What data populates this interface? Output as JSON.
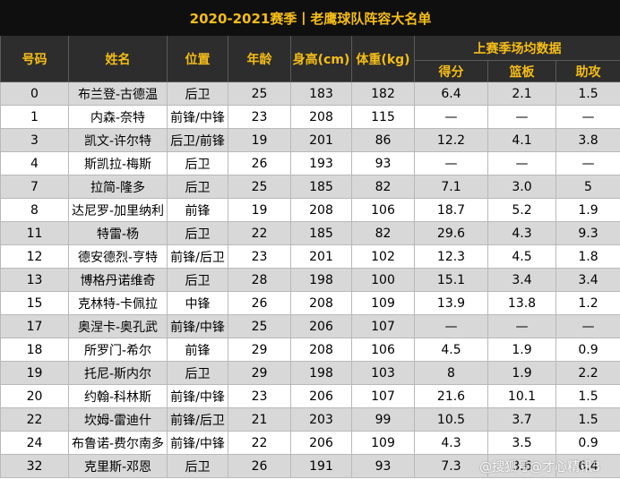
{
  "title": "2020-2021赛季丨老鹰球队阵容大名单",
  "headers": {
    "number": "号码",
    "name": "姓名",
    "position": "位置",
    "age": "年龄",
    "height": "身高(cm)",
    "weight": "体重(kg)",
    "last_season": "上赛季场均数据",
    "points": "得分",
    "rebounds": "篮板",
    "assists": "助攻"
  },
  "rows": [
    [
      "0",
      "布兰登-古德温",
      "后卫",
      "25",
      "183",
      "182",
      "6.4",
      "2.1",
      "1.5"
    ],
    [
      "1",
      "内森-奈特",
      "前锋/中锋",
      "23",
      "208",
      "115",
      "—",
      "—",
      "—"
    ],
    [
      "3",
      "凯文-许尔特",
      "后卫/前锋",
      "19",
      "201",
      "86",
      "12.2",
      "4.1",
      "3.8"
    ],
    [
      "4",
      "斯凯拉-梅斯",
      "后卫",
      "26",
      "193",
      "93",
      "—",
      "—",
      "—"
    ],
    [
      "7",
      "拉简-隆多",
      "后卫",
      "25",
      "185",
      "82",
      "7.1",
      "3.0",
      "5"
    ],
    [
      "8",
      "达尼罗-加里纳利",
      "前锋",
      "19",
      "208",
      "106",
      "18.7",
      "5.2",
      "1.9"
    ],
    [
      "11",
      "特雷-杨",
      "后卫",
      "22",
      "185",
      "82",
      "29.6",
      "4.3",
      "9.3"
    ],
    [
      "12",
      "德安德烈-亨特",
      "前锋/后卫",
      "23",
      "201",
      "102",
      "12.3",
      "4.5",
      "1.8"
    ],
    [
      "13",
      "博格丹诺维奇",
      "后卫",
      "28",
      "198",
      "100",
      "15.1",
      "3.4",
      "3.4"
    ],
    [
      "15",
      "克林特-卡佩拉",
      "中锋",
      "26",
      "208",
      "109",
      "13.9",
      "13.8",
      "1.2"
    ],
    [
      "17",
      "奥涅卡-奥孔武",
      "前锋/中锋",
      "25",
      "206",
      "107",
      "—",
      "—",
      "—"
    ],
    [
      "18",
      "所罗门-希尔",
      "前锋",
      "29",
      "208",
      "106",
      "4.5",
      "1.9",
      "0.9"
    ],
    [
      "19",
      "托尼-斯内尔",
      "后卫",
      "29",
      "198",
      "103",
      "8",
      "1.9",
      "2.2"
    ],
    [
      "20",
      "约翰-科林斯",
      "前锋/中锋",
      "23",
      "206",
      "107",
      "21.6",
      "10.1",
      "1.5"
    ],
    [
      "22",
      "坎姆-雷迪什",
      "前锋/后卫",
      "21",
      "203",
      "99",
      "10.5",
      "3.7",
      "1.5"
    ],
    [
      "24",
      "布鲁诺-费尔南多",
      "前锋/中锋",
      "22",
      "206",
      "109",
      "4.3",
      "3.5",
      "0.9"
    ],
    [
      "32",
      "克里斯-邓恩",
      "后卫",
      "26",
      "191",
      "93",
      "7.3",
      "3.6",
      "6.4"
    ]
  ],
  "watermark": "@搜狐号@才心精讯3"
}
